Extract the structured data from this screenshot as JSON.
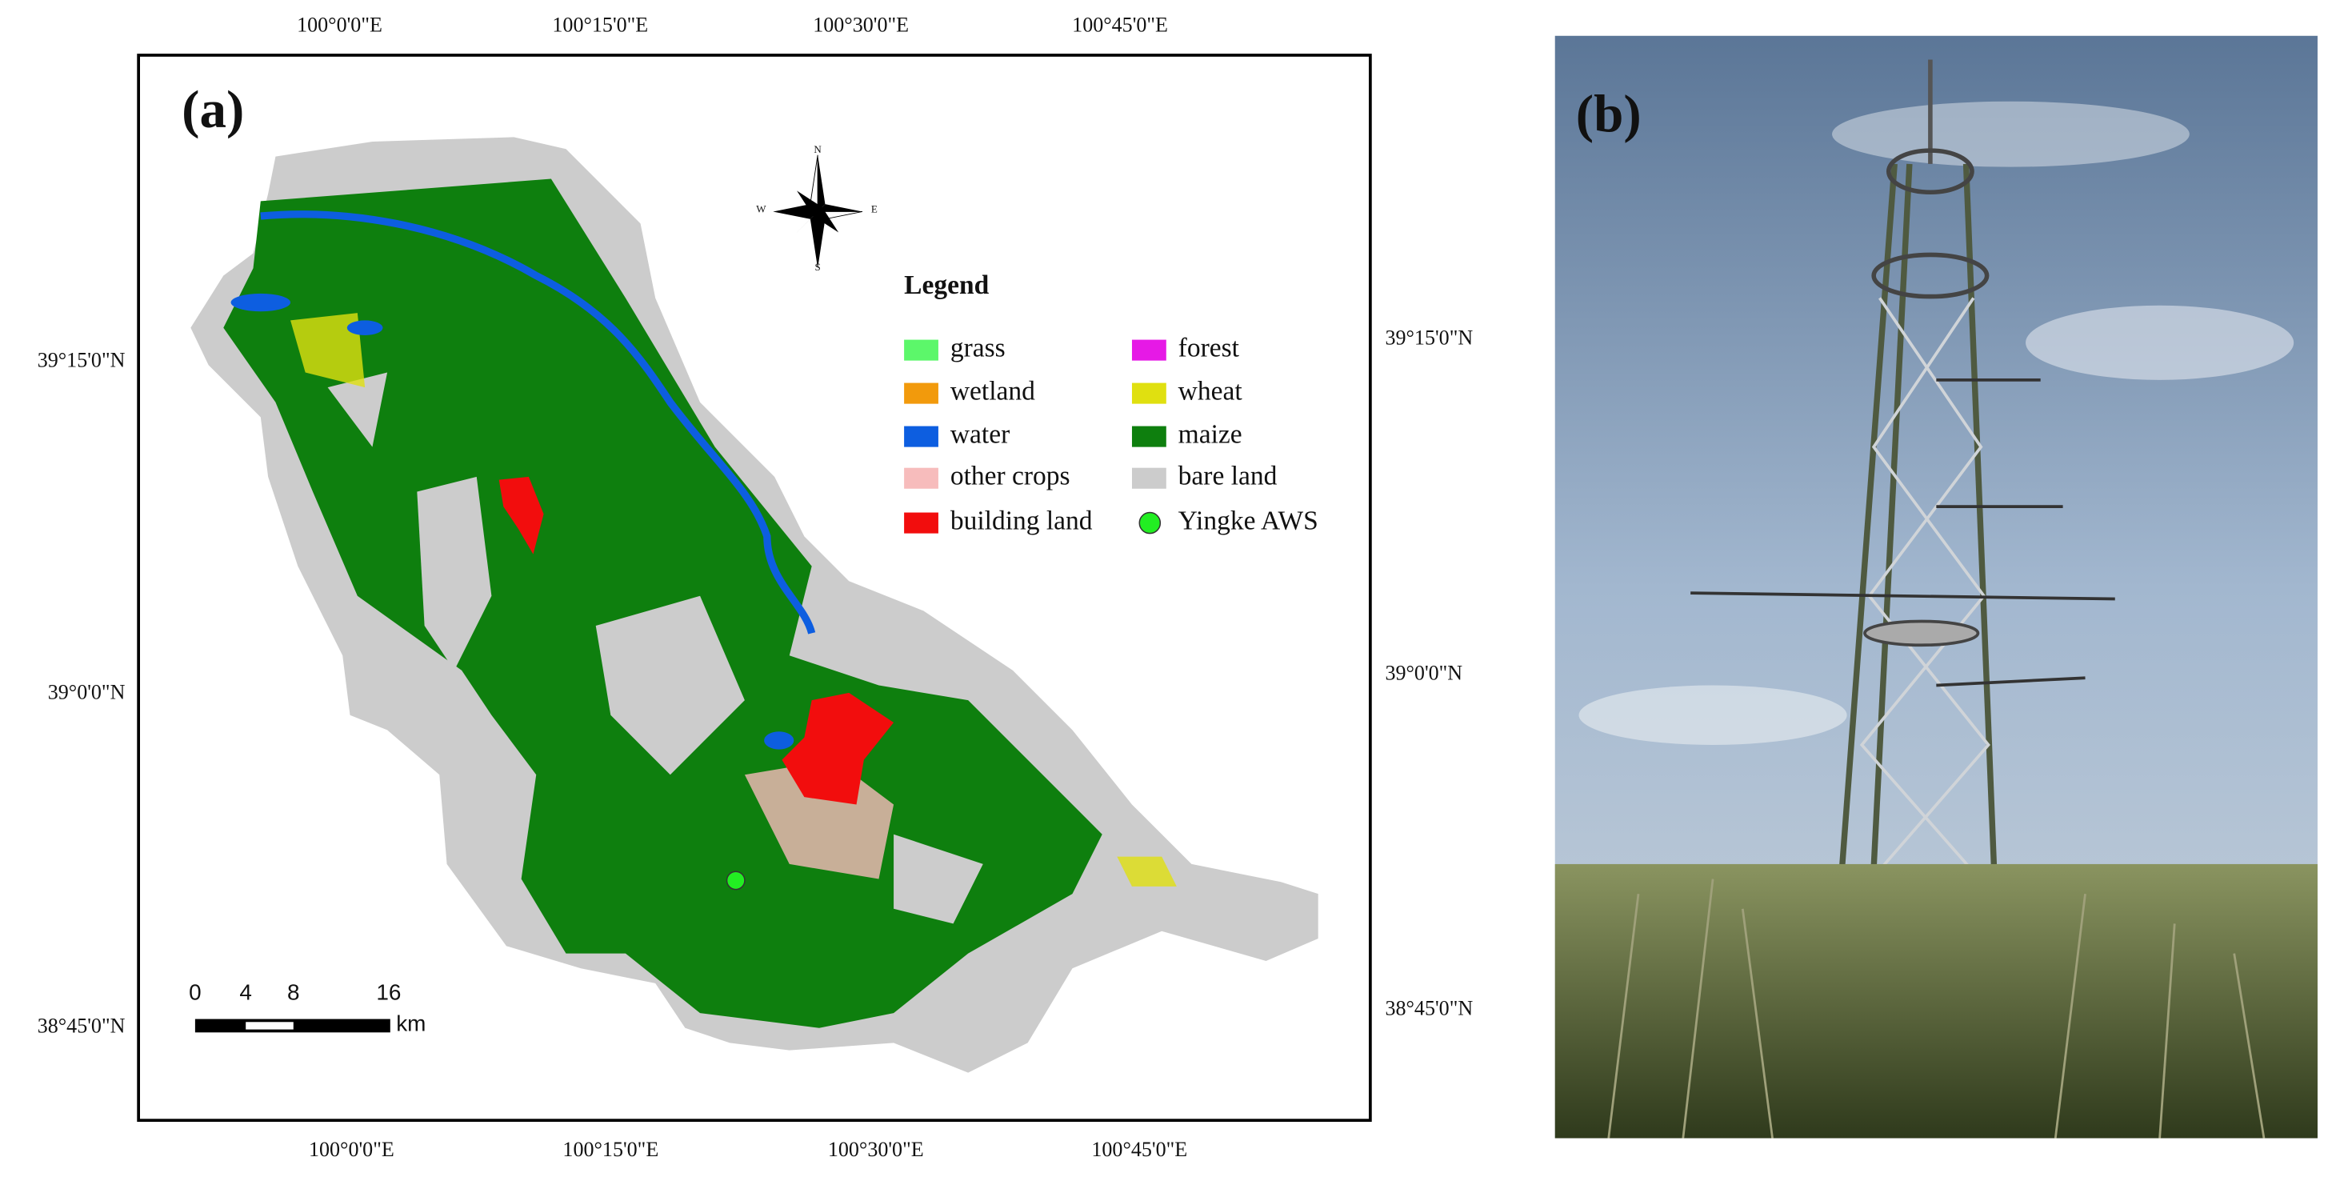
{
  "panels": {
    "a": {
      "label": "(a)",
      "top_lon_labels": [
        "100°0'0\"E",
        "100°15'0\"E",
        "100°30'0\"E",
        "100°45'0\"E"
      ],
      "bottom_lon_labels": [
        "100°0'0\"E",
        "100°15'0\"E",
        "100°30'0\"E",
        "100°45'0\"E"
      ],
      "left_lat_labels": [
        "39°15'0\"N",
        "39°0'0\"N",
        "38°45'0\"N"
      ],
      "right_lat_labels": [
        "39°15'0\"N",
        "39°0'0\"N",
        "38°45'0\"N"
      ],
      "compass": [
        "N",
        "E",
        "S",
        "W"
      ],
      "legend": {
        "title": "Legend",
        "items": [
          {
            "name": "grass",
            "color": "#5cf76a"
          },
          {
            "name": "forest",
            "color": "#e619e6"
          },
          {
            "name": "wetland",
            "color": "#f29a0c"
          },
          {
            "name": "wheat",
            "color": "#e0e010"
          },
          {
            "name": "water",
            "color": "#0d5ee0"
          },
          {
            "name": "maize",
            "color": "#0e7f0e"
          },
          {
            "name": "other crops",
            "color": "#f7bcbc"
          },
          {
            "name": "bare land",
            "color": "#cccccc"
          },
          {
            "name": "building land",
            "color": "#f20d0d"
          },
          {
            "name": "Yingke AWS",
            "color": "#22ee22"
          }
        ]
      },
      "scale_bar": {
        "labels": [
          "0",
          "4",
          "8",
          "16"
        ],
        "unit": "km"
      }
    },
    "b": {
      "label": "(b)"
    }
  }
}
